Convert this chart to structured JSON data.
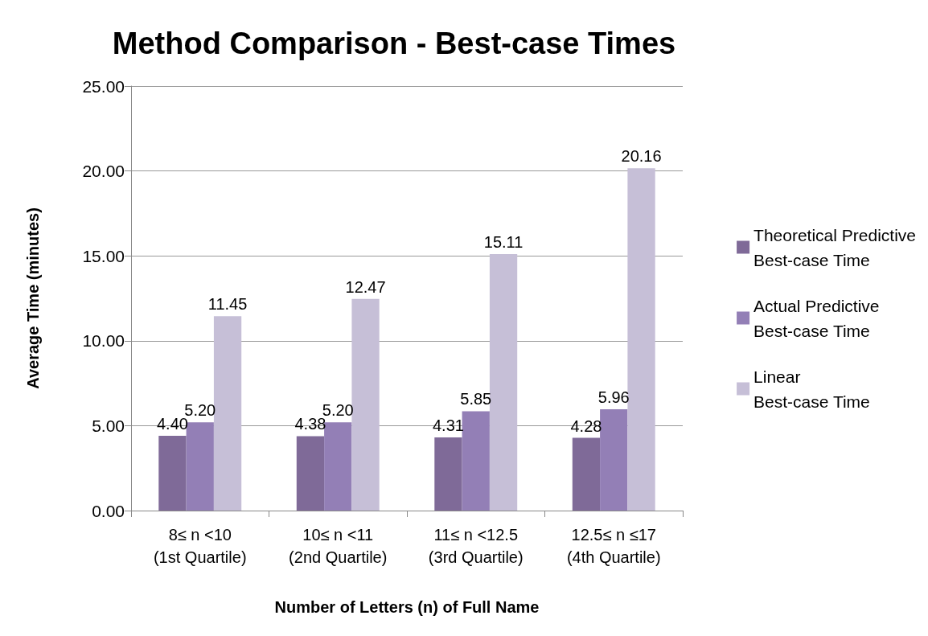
{
  "chart_data": {
    "type": "bar",
    "title": "Method Comparison - Best-case Times",
    "xlabel": "Number of Letters (n) of Full Name",
    "ylabel": "Average Time (minutes)",
    "categories": [
      "8≤ n <10\n(1st Quartile)",
      "10≤ n <11\n(2nd Quartile)",
      "11≤ n <12.5\n(3rd Quartile)",
      "12.5≤ n ≤17\n(4th Quartile)"
    ],
    "series": [
      {
        "name": "Theoretical Predictive\nBest-case Time",
        "color": "#7f6a98",
        "values": [
          4.4,
          4.38,
          4.31,
          4.28
        ],
        "value_labels": [
          "4.40",
          "4.38",
          "4.31",
          "4.28"
        ]
      },
      {
        "name": "Actual Predictive\nBest-case Time",
        "color": "#937fb6",
        "values": [
          5.2,
          5.2,
          5.85,
          5.96
        ],
        "value_labels": [
          "5.20",
          "5.20",
          "5.85",
          "5.96"
        ]
      },
      {
        "name": "Linear\nBest-case Time",
        "color": "#c6bfd7",
        "values": [
          11.45,
          12.47,
          15.11,
          20.16
        ],
        "value_labels": [
          "11.45",
          "12.47",
          "15.11",
          "20.16"
        ]
      }
    ],
    "ylim": [
      0,
      25
    ],
    "yticks": [
      {
        "value": 0,
        "label": "0.00"
      },
      {
        "value": 5,
        "label": "5.00"
      },
      {
        "value": 10,
        "label": "10.00"
      },
      {
        "value": 15,
        "label": "15.00"
      },
      {
        "value": 20,
        "label": "20.00"
      },
      {
        "value": 25,
        "label": "25.00"
      }
    ],
    "grid": "y",
    "legend": "right"
  }
}
